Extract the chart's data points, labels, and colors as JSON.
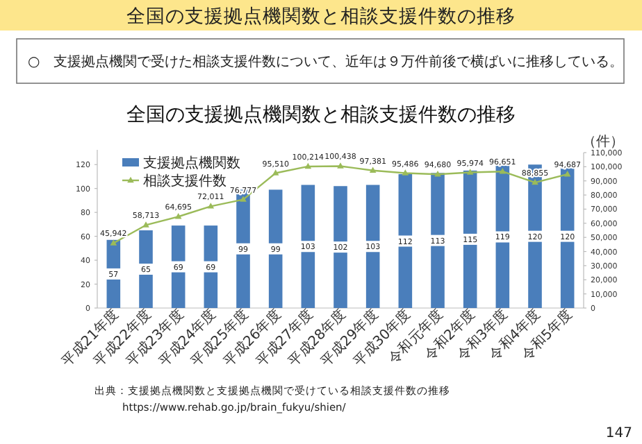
{
  "chart_data": {
    "type": "bar",
    "title": "全国の支援拠点機関数と相談支援件数の推移",
    "subtitle": "全国の支援拠点機関数と相談支援件数の推移",
    "annotations": [
      "○　支援拠点機関で受けた相談支援件数について、近年は９万件前後で横ばいに推移している。",
      "出典：支援拠点機関数と支援拠点機関で受けている相談支援件数の推移",
      "https://www.rehab.go.jp/brain_fukyu/shien/",
      "147"
    ],
    "categories": [
      "平成21年度",
      "平成22年度",
      "平成23年度",
      "平成24年度",
      "平成25年度",
      "平成26年度",
      "平成27年度",
      "平成28年度",
      "平成29年度",
      "平成30年度",
      "令和元年度",
      "令和2年度",
      "令和3年度",
      "令和4年度",
      "令和5年度"
    ],
    "series": [
      {
        "name": "支援拠点機関数",
        "color": "#4a7ebb",
        "values": [
          57,
          65,
          69,
          69,
          99,
          99,
          103,
          102,
          103,
          112,
          113,
          115,
          119,
          120,
          120
        ],
        "value_labels": [
          "57",
          "65",
          "69",
          "69",
          "99",
          "99",
          "103",
          "102",
          "103",
          "112",
          "113",
          "115",
          "119",
          "120",
          "120"
        ]
      },
      {
        "name": "相談支援件数",
        "type": "line",
        "axis": "y2",
        "color": "#9bbb59",
        "values": [
          45942,
          58713,
          64695,
          72011,
          76777,
          95510,
          100214,
          100438,
          97381,
          95486,
          94680,
          95974,
          96651,
          88855,
          94687
        ],
        "value_labels": [
          "45,942",
          "58,713",
          "64,695",
          "72,011",
          "76,777",
          "95,510",
          "100,214",
          "100,438",
          "97,381",
          "95,486",
          "94,680",
          "95,974",
          "96,651",
          "88,855",
          "94,687"
        ]
      }
    ],
    "ylim": [
      0,
      130
    ],
    "yticks": [
      0,
      20,
      40,
      60,
      80,
      100,
      120
    ],
    "y2lim": [
      0,
      110000
    ],
    "y2label": "（件）",
    "y2ticks": [
      {
        "value": 0,
        "label": "0"
      },
      {
        "value": 10000,
        "label": "10,000"
      },
      {
        "value": 20000,
        "label": "20,000"
      },
      {
        "value": 30000,
        "label": "30,000"
      },
      {
        "value": 40000,
        "label": "40,000"
      },
      {
        "value": 50000,
        "label": "50,000"
      },
      {
        "value": 60000,
        "label": "60,000"
      },
      {
        "value": 70000,
        "label": "70,000"
      },
      {
        "value": 80000,
        "label": "80,000"
      },
      {
        "value": 90000,
        "label": "90,000"
      },
      {
        "value": 100000,
        "label": "100,000"
      },
      {
        "value": 110000,
        "label": "110,000"
      }
    ],
    "marker": "triangle",
    "legend": "top left"
  }
}
